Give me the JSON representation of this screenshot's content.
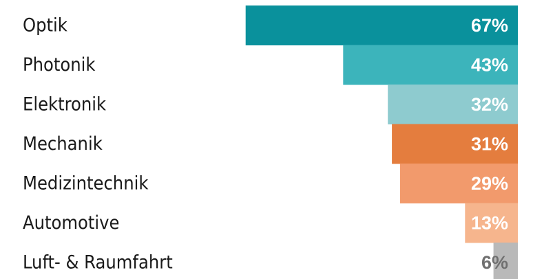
{
  "chart_data": {
    "type": "bar",
    "orientation": "horizontal",
    "categories": [
      "Optik",
      "Photonik",
      "Elektronik",
      "Mechanik",
      "Medizintechnik",
      "Automotive",
      "Luft- & Raumfahrt"
    ],
    "values": [
      67,
      43,
      32,
      31,
      29,
      13,
      6
    ],
    "value_labels": [
      "67%",
      "43%",
      "32%",
      "31%",
      "29%",
      "13%",
      "6%"
    ],
    "unit": "%",
    "xlim": [
      0,
      100
    ],
    "bar_alignment": "right",
    "grid": false,
    "legend": "none",
    "colors": [
      "#0a919c",
      "#3cb4bb",
      "#8ecbcf",
      "#e47d3e",
      "#f29a6c",
      "#f6b58d",
      "#b9b9b9"
    ],
    "value_label_colors": [
      "#ffffff",
      "#ffffff",
      "#ffffff",
      "#ffffff",
      "#ffffff",
      "#ffffff",
      "#707070"
    ]
  }
}
